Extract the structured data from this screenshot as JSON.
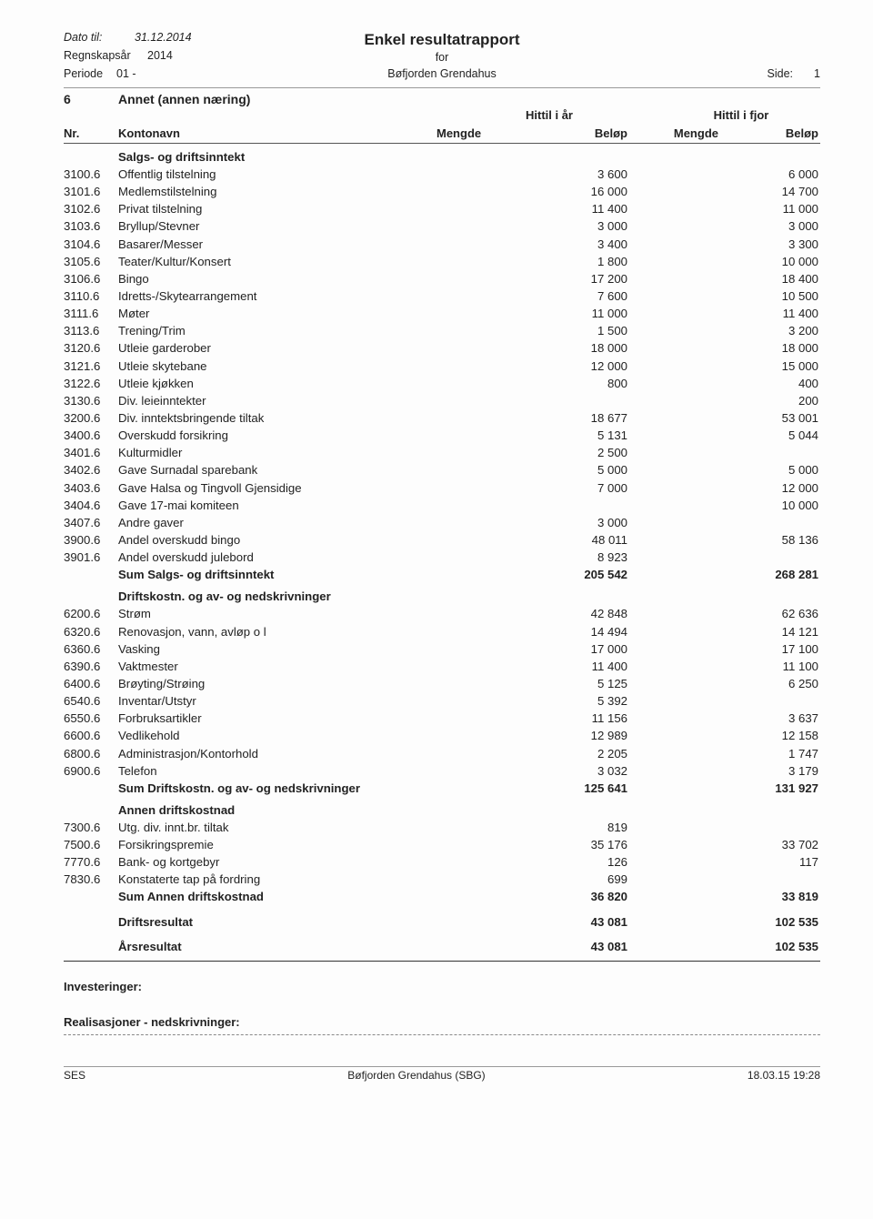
{
  "header": {
    "dato_label": "Dato til:",
    "dato_value": "31.12.2014",
    "regnskap_label": "Regnskapsår",
    "regnskap_value": "2014",
    "periode_label": "Periode",
    "periode_value": "01  -",
    "title": "Enkel resultatrapport",
    "for": "for",
    "org": "Bøfjorden Grendahus",
    "side_label": "Side:",
    "side_value": "1"
  },
  "section": {
    "num": "6",
    "name": "Annet (annen næring)"
  },
  "col_groups": {
    "g1": "Hittil i år",
    "g2": "Hittil i fjor"
  },
  "col_headers": {
    "nr": "Nr.",
    "konto": "Kontonavn",
    "m1": "Mengde",
    "b1": "Beløp",
    "m2": "Mengde",
    "b2": "Beløp"
  },
  "groups": [
    {
      "title": "Salgs- og driftsinntekt",
      "rows": [
        {
          "nr": "3100.6",
          "name": "Offentlig tilstelning",
          "b1": "3 600",
          "b2": "6 000"
        },
        {
          "nr": "3101.6",
          "name": "Medlemstilstelning",
          "b1": "16 000",
          "b2": "14 700"
        },
        {
          "nr": "3102.6",
          "name": "Privat tilstelning",
          "b1": "11 400",
          "b2": "11 000"
        },
        {
          "nr": "3103.6",
          "name": "Bryllup/Stevner",
          "b1": "3 000",
          "b2": "3 000"
        },
        {
          "nr": "3104.6",
          "name": "Basarer/Messer",
          "b1": "3 400",
          "b2": "3 300"
        },
        {
          "nr": "3105.6",
          "name": "Teater/Kultur/Konsert",
          "b1": "1 800",
          "b2": "10 000"
        },
        {
          "nr": "3106.6",
          "name": "Bingo",
          "b1": "17 200",
          "b2": "18 400"
        },
        {
          "nr": "3110.6",
          "name": "Idretts-/Skytearrangement",
          "b1": "7 600",
          "b2": "10 500"
        },
        {
          "nr": "3111.6",
          "name": "Møter",
          "b1": "11 000",
          "b2": "11 400"
        },
        {
          "nr": "3113.6",
          "name": "Trening/Trim",
          "b1": "1 500",
          "b2": "3 200"
        },
        {
          "nr": "3120.6",
          "name": "Utleie garderober",
          "b1": "18 000",
          "b2": "18 000"
        },
        {
          "nr": "3121.6",
          "name": "Utleie skytebane",
          "b1": "12 000",
          "b2": "15 000"
        },
        {
          "nr": "3122.6",
          "name": "Utleie kjøkken",
          "b1": "800",
          "b2": "400"
        },
        {
          "nr": "3130.6",
          "name": "Div. leieinntekter",
          "b1": "",
          "b2": "200"
        },
        {
          "nr": "3200.6",
          "name": "Div. inntektsbringende tiltak",
          "b1": "18 677",
          "b2": "53 001"
        },
        {
          "nr": "3400.6",
          "name": "Overskudd forsikring",
          "b1": "5 131",
          "b2": "5 044"
        },
        {
          "nr": "3401.6",
          "name": "Kulturmidler",
          "b1": "2 500",
          "b2": ""
        },
        {
          "nr": "3402.6",
          "name": "Gave Surnadal sparebank",
          "b1": "5 000",
          "b2": "5 000"
        },
        {
          "nr": "3403.6",
          "name": "Gave Halsa og Tingvoll Gjensidige",
          "b1": "7 000",
          "b2": "12 000"
        },
        {
          "nr": "3404.6",
          "name": "Gave 17-mai komiteen",
          "b1": "",
          "b2": "10 000"
        },
        {
          "nr": "3407.6",
          "name": "Andre gaver",
          "b1": "3 000",
          "b2": ""
        },
        {
          "nr": "3900.6",
          "name": "Andel overskudd bingo",
          "b1": "48 011",
          "b2": "58 136"
        },
        {
          "nr": "3901.6",
          "name": "Andel overskudd julebord",
          "b1": "8 923",
          "b2": ""
        }
      ],
      "sum": {
        "name": "Sum Salgs- og driftsinntekt",
        "b1": "205 542",
        "b2": "268 281"
      }
    },
    {
      "title": "Driftskostn. og av- og nedskrivninger",
      "rows": [
        {
          "nr": "6200.6",
          "name": "Strøm",
          "b1": "42 848",
          "b2": "62 636"
        },
        {
          "nr": "6320.6",
          "name": "Renovasjon, vann, avløp o l",
          "b1": "14 494",
          "b2": "14 121"
        },
        {
          "nr": "6360.6",
          "name": "Vasking",
          "b1": "17 000",
          "b2": "17 100"
        },
        {
          "nr": "6390.6",
          "name": "Vaktmester",
          "b1": "11 400",
          "b2": "11 100"
        },
        {
          "nr": "6400.6",
          "name": "Brøyting/Strøing",
          "b1": "5 125",
          "b2": "6 250"
        },
        {
          "nr": "6540.6",
          "name": "Inventar/Utstyr",
          "b1": "5 392",
          "b2": ""
        },
        {
          "nr": "6550.6",
          "name": "Forbruksartikler",
          "b1": "11 156",
          "b2": "3 637"
        },
        {
          "nr": "6600.6",
          "name": "Vedlikehold",
          "b1": "12 989",
          "b2": "12 158"
        },
        {
          "nr": "6800.6",
          "name": "Administrasjon/Kontorhold",
          "b1": "2 205",
          "b2": "1 747"
        },
        {
          "nr": "6900.6",
          "name": "Telefon",
          "b1": "3 032",
          "b2": "3 179"
        }
      ],
      "sum": {
        "name": "Sum Driftskostn. og av- og nedskrivninger",
        "b1": "125 641",
        "b2": "131 927"
      }
    },
    {
      "title": "Annen driftskostnad",
      "rows": [
        {
          "nr": "7300.6",
          "name": "Utg. div. innt.br. tiltak",
          "b1": "819",
          "b2": ""
        },
        {
          "nr": "7500.6",
          "name": "Forsikringspremie",
          "b1": "35 176",
          "b2": "33 702"
        },
        {
          "nr": "7770.6",
          "name": "Bank- og kortgebyr",
          "b1": "126",
          "b2": "117"
        },
        {
          "nr": "7830.6",
          "name": "Konstaterte tap på fordring",
          "b1": "699",
          "b2": ""
        }
      ],
      "sum": {
        "name": "Sum Annen driftskostnad",
        "b1": "36 820",
        "b2": "33 819"
      }
    }
  ],
  "results": [
    {
      "name": "Driftsresultat",
      "b1": "43 081",
      "b2": "102 535"
    },
    {
      "name": "Årsresultat",
      "b1": "43 081",
      "b2": "102 535"
    }
  ],
  "notes": {
    "inv": "Investeringer:",
    "real": "Realisasjoner - nedskrivninger:"
  },
  "footer": {
    "left": "SES",
    "mid": "Bøfjorden Grendahus (SBG)",
    "right": "18.03.15 19:28"
  }
}
